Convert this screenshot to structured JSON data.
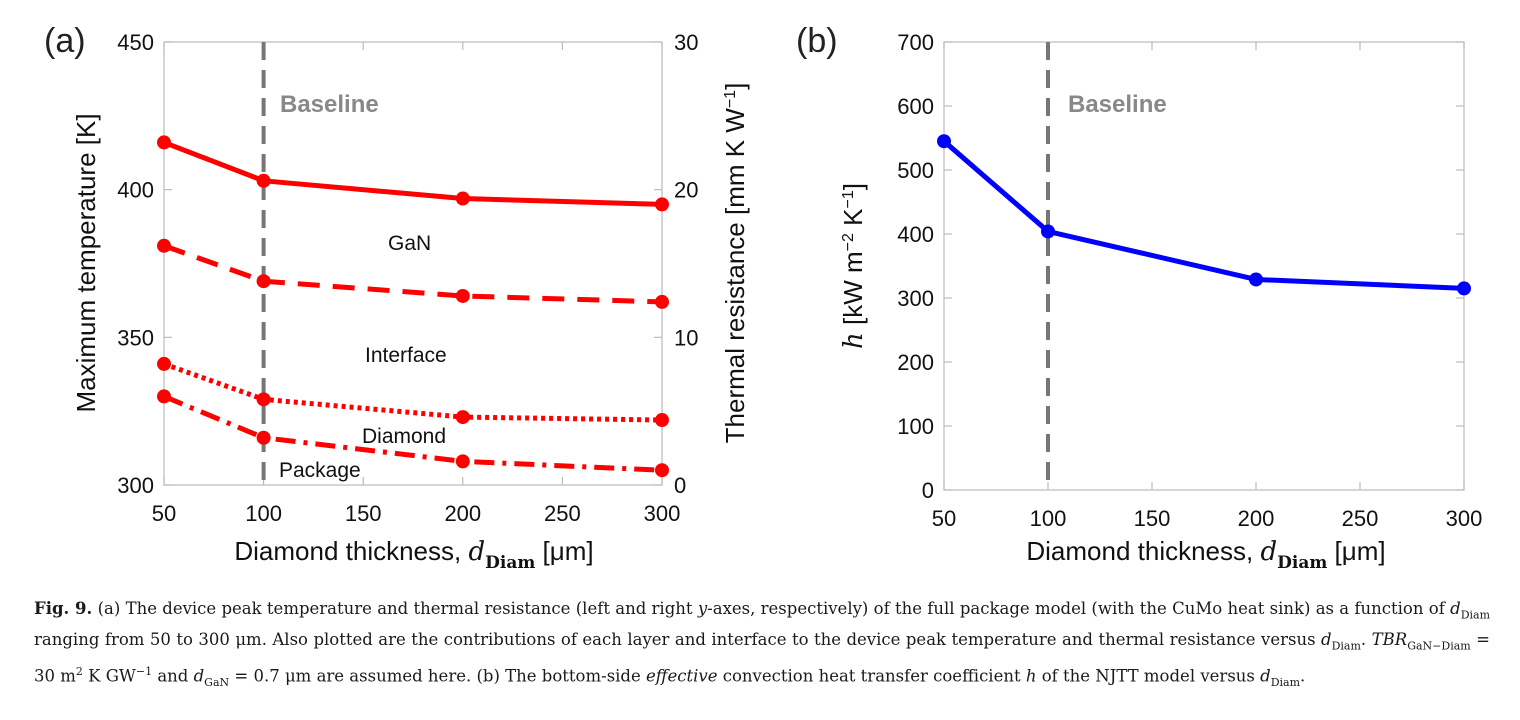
{
  "chart_data": [
    {
      "panel": "(a)",
      "type": "line",
      "xlabel_prefix": "Diamond thickness, ",
      "xlabel_var": "d",
      "xlabel_sub": "Diam",
      "xlabel_suffix": " [μm]",
      "ylabel": "Maximum temperature [K]",
      "y2label": "Thermal resistance [mm K W",
      "y2label_sup": "−1",
      "y2label_end": "]",
      "xlim": [
        50,
        300
      ],
      "ylim": [
        300,
        450
      ],
      "y2lim": [
        0,
        30
      ],
      "xticks": [
        "50",
        "100",
        "150",
        "200",
        "250",
        "300"
      ],
      "yticks": [
        "300",
        "350",
        "400",
        "450"
      ],
      "y2ticks": [
        "0",
        "10",
        "20",
        "30"
      ],
      "x": [
        50,
        100,
        200,
        300
      ],
      "series": [
        {
          "name": "GaN",
          "style": "solid",
          "values": [
            416,
            403,
            397,
            395
          ]
        },
        {
          "name": "Interface",
          "style": "dashed",
          "values": [
            381,
            369,
            364,
            362
          ]
        },
        {
          "name": "Diamond",
          "style": "dotted",
          "values": [
            341,
            329,
            323,
            322
          ]
        },
        {
          "name": "Package",
          "style": "dashdot",
          "values": [
            330,
            316,
            308,
            305
          ]
        }
      ],
      "baseline": {
        "x": 100,
        "label": "Baseline"
      },
      "annotations": [
        "GaN",
        "Interface",
        "Diamond",
        "Package"
      ],
      "color": "#ff0000"
    },
    {
      "panel": "(b)",
      "type": "line",
      "xlabel_prefix": "Diamond thickness, ",
      "xlabel_var": "d",
      "xlabel_sub": "Diam",
      "xlabel_suffix": " [μm]",
      "ylabel_var": "h",
      "ylabel_text": " [kW m",
      "ylabel_sup1": "−2",
      "ylabel_mid": " K",
      "ylabel_sup2": "−1",
      "ylabel_end": "]",
      "xlim": [
        50,
        300
      ],
      "ylim": [
        0,
        700
      ],
      "xticks": [
        "50",
        "100",
        "150",
        "200",
        "250",
        "300"
      ],
      "yticks": [
        "0",
        "100",
        "200",
        "300",
        "400",
        "500",
        "600",
        "700"
      ],
      "x": [
        50,
        100,
        200,
        300
      ],
      "series": [
        {
          "name": "h",
          "style": "solid",
          "values": [
            545,
            404,
            329,
            315
          ]
        }
      ],
      "baseline": {
        "x": 100,
        "label": "Baseline"
      },
      "color": "#0000ff"
    }
  ],
  "caption": {
    "label": "Fig. 9.",
    "p1": " (a) The device peak temperature and thermal resistance (left and right ",
    "p1_it": "y",
    "p2": "-axes, respectively) of the full package model (with the CuMo heat sink) as a function of ",
    "p3": " ranging from 50 to 300 μm. Also plotted are the contributions of each layer and interface to the device peak temperature and thermal resistance versus ",
    "p4": ". ",
    "tbr_var": "TBR",
    "tbr_sub": "GaN−Diam",
    "p5": " = 30 m",
    "p5_sup": "2",
    "p6": " K GW",
    "p6_sup": "−1",
    "p7": " and ",
    "dgan_sub": "GaN",
    "p8": " = 0.7 μm are assumed here. (b) The bottom-side ",
    "p8_it": "effective",
    "p9": " convection heat transfer coefficient ",
    "h_var": "h",
    "p10": " of the NJTT model versus ",
    "p11": ".",
    "d_var": "d",
    "d_sub": "Diam"
  }
}
